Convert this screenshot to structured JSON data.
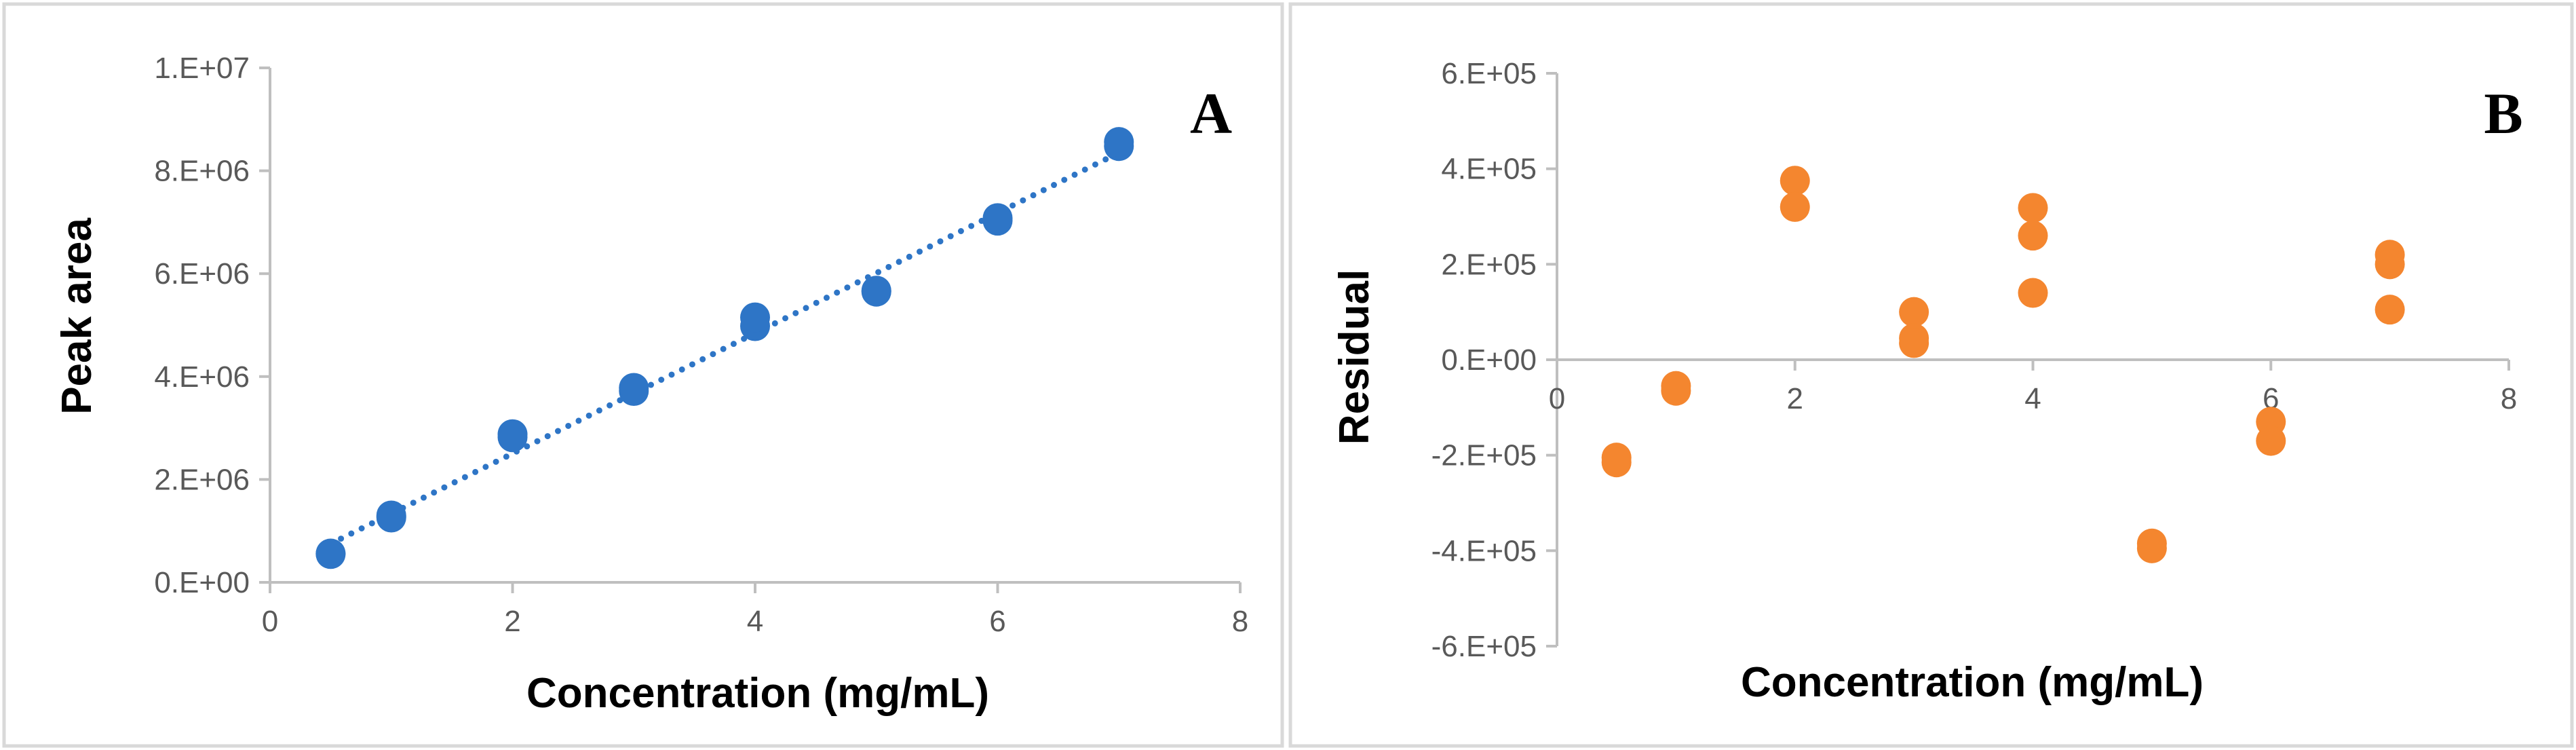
{
  "chart_data": [
    {
      "panel": "A",
      "type": "scatter",
      "title": "",
      "xlabel": "Concentration (mg/mL)",
      "ylabel": "Peak area",
      "xlim": [
        0,
        8
      ],
      "ylim": [
        0,
        10000000
      ],
      "x_ticks": [
        0,
        2,
        4,
        6,
        8
      ],
      "x_tick_labels": [
        "0",
        "2",
        "4",
        "6",
        "8"
      ],
      "y_ticks": [
        0,
        2000000,
        4000000,
        6000000,
        8000000,
        10000000
      ],
      "y_tick_labels": [
        "0.E+00",
        "2.E+06",
        "4.E+06",
        "6.E+06",
        "8.E+06",
        "1.E+07"
      ],
      "grid": false,
      "legend": "none",
      "series": [
        {
          "name": "Peak area",
          "color": "#2e75c6",
          "points": [
            {
              "x": 0.5,
              "y": 550000
            },
            {
              "x": 0.5,
              "y": 560000
            },
            {
              "x": 1,
              "y": 1260000
            },
            {
              "x": 1,
              "y": 1300000
            },
            {
              "x": 2,
              "y": 2820000
            },
            {
              "x": 2,
              "y": 2880000
            },
            {
              "x": 3,
              "y": 3720000
            },
            {
              "x": 3,
              "y": 3780000
            },
            {
              "x": 4,
              "y": 4980000
            },
            {
              "x": 4,
              "y": 5150000
            },
            {
              "x": 5,
              "y": 5650000
            },
            {
              "x": 5,
              "y": 5670000
            },
            {
              "x": 6,
              "y": 7030000
            },
            {
              "x": 6,
              "y": 7080000
            },
            {
              "x": 7,
              "y": 8480000
            },
            {
              "x": 7,
              "y": 8560000
            }
          ]
        }
      ],
      "trendline": {
        "type": "linear",
        "style": "dotted",
        "color": "#2e75c6",
        "x_start": 0.5,
        "y_start": 750000,
        "x_end": 7,
        "y_end": 8350000
      }
    },
    {
      "panel": "B",
      "type": "scatter",
      "title": "",
      "xlabel": "Concentration (mg/mL)",
      "ylabel": "Residual",
      "xlim": [
        0,
        8
      ],
      "ylim": [
        -600000,
        600000
      ],
      "x_ticks": [
        0,
        2,
        4,
        6,
        8
      ],
      "x_tick_labels": [
        "0",
        "2",
        "4",
        "6",
        "8"
      ],
      "y_ticks": [
        -600000,
        -400000,
        -200000,
        0,
        200000,
        400000,
        600000
      ],
      "y_tick_labels": [
        "-6.E+05",
        "-4.E+05",
        "-2.E+05",
        "0.E+00",
        "2.E+05",
        "4.E+05",
        "6.E+05"
      ],
      "grid": false,
      "legend": "none",
      "series": [
        {
          "name": "Residual",
          "color": "#f4862f",
          "points": [
            {
              "x": 0.5,
              "y": -205000
            },
            {
              "x": 0.5,
              "y": -215000
            },
            {
              "x": 1,
              "y": -55000
            },
            {
              "x": 1,
              "y": -65000
            },
            {
              "x": 2,
              "y": 375000
            },
            {
              "x": 2,
              "y": 320000
            },
            {
              "x": 3,
              "y": 100000
            },
            {
              "x": 3,
              "y": 45000
            },
            {
              "x": 3,
              "y": 35000
            },
            {
              "x": 4,
              "y": 318000
            },
            {
              "x": 4,
              "y": 260000
            },
            {
              "x": 4,
              "y": 140000
            },
            {
              "x": 5,
              "y": -385000
            },
            {
              "x": 5,
              "y": -395000
            },
            {
              "x": 6,
              "y": -130000
            },
            {
              "x": 6,
              "y": -170000
            },
            {
              "x": 7,
              "y": 220000
            },
            {
              "x": 7,
              "y": 200000
            },
            {
              "x": 7,
              "y": 105000
            }
          ]
        }
      ]
    }
  ],
  "colors": {
    "axis": "#bfbfbf",
    "panel_border": "#d9d9d9",
    "tick_text": "#595959"
  }
}
